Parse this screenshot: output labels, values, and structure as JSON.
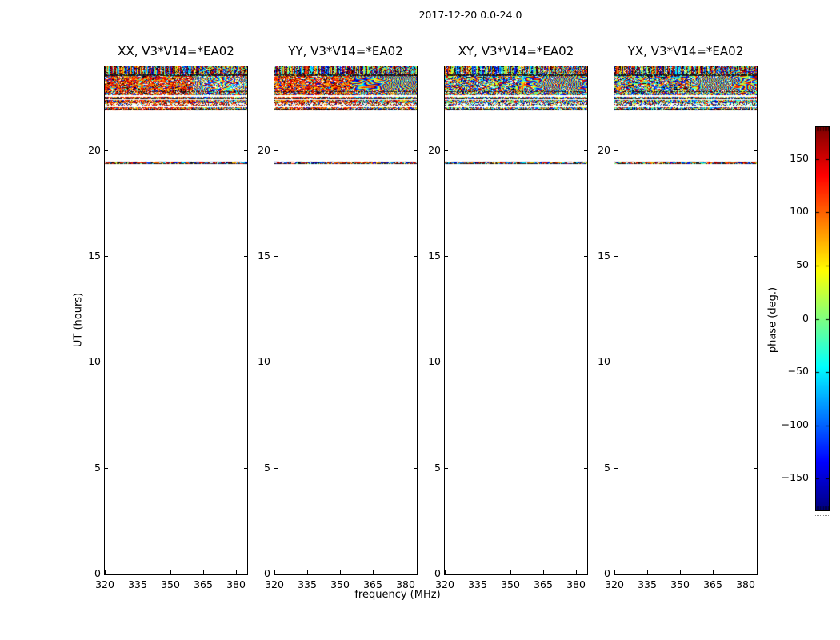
{
  "figure": {
    "title": "2017-12-20 0.0-24.0",
    "xlabel": "frequency (MHz)",
    "ylabel": "UT (hours)"
  },
  "panels": [
    {
      "id": "xx",
      "title": "XX, V3*V14=*EA02",
      "noise_base": "warm",
      "chevron_start": 0.62,
      "chevron_white": 0.18
    },
    {
      "id": "yy",
      "title": "YY, V3*V14=*EA02",
      "noise_base": "warm",
      "chevron_start": 0.55,
      "chevron_white": 0.02
    },
    {
      "id": "xy",
      "title": "XY, V3*V14=*EA02",
      "noise_base": "rainbow",
      "chevron_start": 0.55,
      "chevron_white": 0.05
    },
    {
      "id": "yx",
      "title": "YX, V3*V14=*EA02",
      "noise_base": "rainbow",
      "chevron_start": 0.55,
      "chevron_white": 0.05
    }
  ],
  "axes": {
    "x_range_mhz": [
      320,
      385.3
    ],
    "x_ticks": [
      320,
      335,
      350,
      365,
      380
    ],
    "x_tick_labels": [
      "320",
      "335",
      "350",
      "365",
      "380"
    ],
    "y_range_hours": [
      0,
      24
    ],
    "y_ticks": [
      0,
      5,
      10,
      15,
      20
    ],
    "y_tick_labels": [
      "0",
      "5",
      "10",
      "15",
      "20"
    ]
  },
  "colorbar": {
    "label": "phase (deg.)",
    "range_deg": [
      -180,
      180
    ],
    "ticks": [
      150,
      100,
      50,
      0,
      -50,
      -100,
      -150
    ],
    "tick_labels": [
      "150",
      "100",
      "50",
      "0",
      "−50",
      "−100",
      "−150"
    ],
    "colormap": "jet"
  },
  "chart_data": {
    "type": "heatmap",
    "title": "2017-12-20 0.0-24.0",
    "xlabel": "frequency (MHz)",
    "ylabel": "UT (hours)",
    "zlabel": "phase (deg.)",
    "panels": [
      "XX, V3*V14=*EA02",
      "YY, V3*V14=*EA02",
      "XY, V3*V14=*EA02",
      "YX, V3*V14=*EA02"
    ],
    "x_range_mhz": [
      320,
      385.3
    ],
    "y_range_hours": [
      0,
      24
    ],
    "z_range_deg": [
      -180,
      180
    ],
    "colormap": "jet",
    "legend_position": "right-colorbar",
    "grid": false,
    "bands": [
      {
        "ut": [
          23.62,
          24.0
        ],
        "kind": "top",
        "desc": "dense multicolor phase noise with vertical striping, fringes on high-frequency side"
      },
      {
        "ut": [
          23.54,
          23.62
        ],
        "kind": "dark",
        "desc": "near-black horizontal row"
      },
      {
        "ut": [
          22.9,
          23.54
        ],
        "kind": "main",
        "desc": "main scan: warm (red/orange) phase noise for XX/YY, full-range rainbow noise for XY/YX, diagonal wrapped-phase fringe pattern toward high frequencies"
      },
      {
        "ut": [
          22.64,
          22.9
        ],
        "kind": "rows",
        "desc": "row-striped phase noise"
      },
      {
        "ut": [
          22.46,
          22.58
        ],
        "kind": "rows",
        "desc": "thin row-striped noise band"
      },
      {
        "ut": [
          22.28,
          22.4
        ],
        "kind": "rows",
        "desc": "thin row-striped noise band"
      },
      {
        "ut": [
          22.16,
          22.26
        ],
        "kind": "rows_light",
        "desc": "sparse pale noise rows"
      },
      {
        "ut": [
          21.94,
          22.06
        ],
        "kind": "rows",
        "desc": "thin row-striped noise band"
      },
      {
        "ut": [
          19.4,
          19.52
        ],
        "kind": "line",
        "desc": "single short scan line of mixed-phase noise"
      }
    ]
  }
}
